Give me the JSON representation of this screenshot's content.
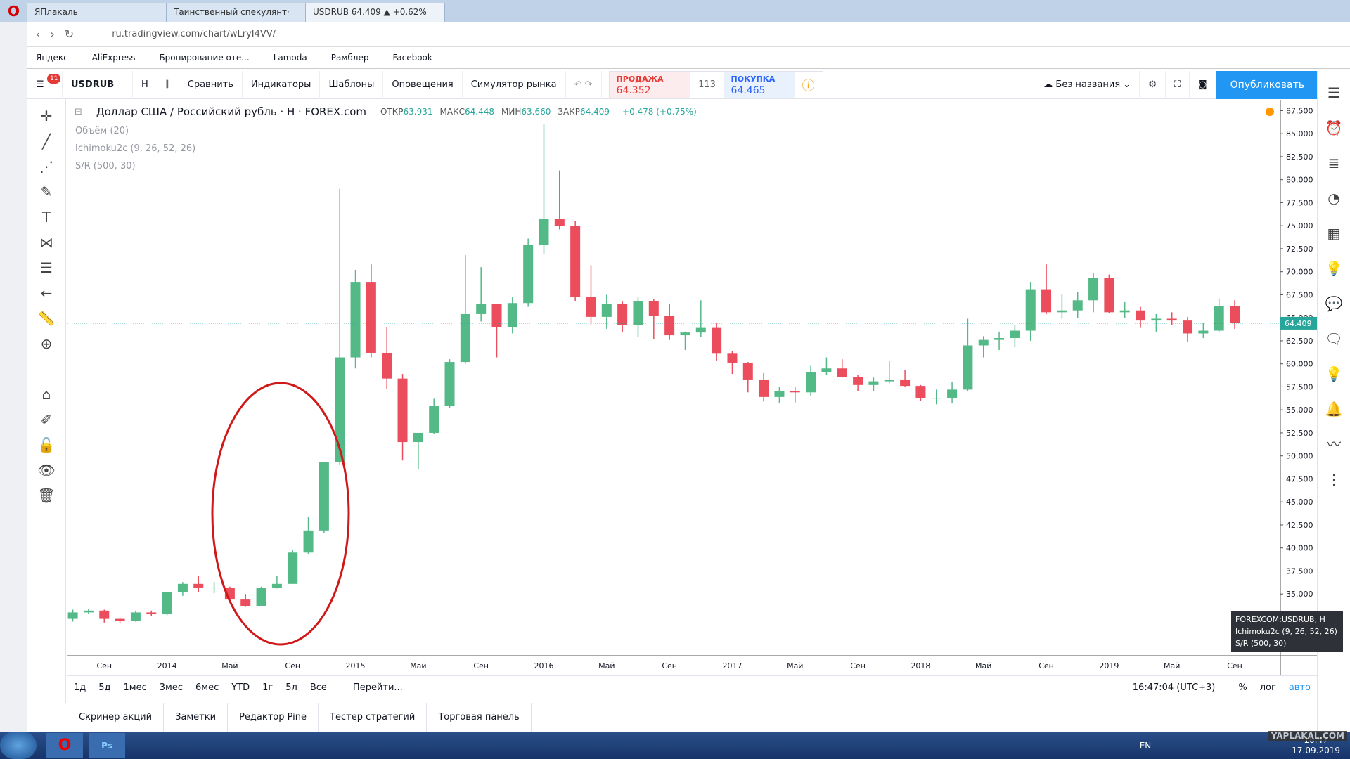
{
  "browser": {
    "tabs": [
      "ЯПлакаль",
      "Таинственный спекулянт·",
      "USDRUB 64.409 ▲ +0.62%"
    ],
    "url": "ru.tradingview.com/chart/wLryI4VV/",
    "bookmarks": [
      "Яндекс",
      "AliExpress",
      "Бронирование оте...",
      "Lamoda",
      "Рамблер",
      "Facebook"
    ]
  },
  "toolbar": {
    "badge": "11",
    "symbol": "USDRUB",
    "interval": "Н",
    "buttons": [
      "Сравнить",
      "Индикаторы",
      "Шаблоны",
      "Оповещения",
      "Симулятор рынка"
    ],
    "sell_label": "ПРОДАЖА",
    "sell": "64.352",
    "spread": "113",
    "buy_label": "ПОКУПКА",
    "buy": "64.465",
    "layout": "Без названия",
    "publish": "Опубликовать"
  },
  "legend": {
    "title": "Доллар США / Российский рубль · Н · FOREX.com",
    "ohlc": [
      "ОТКР",
      "63.931",
      "МАКС",
      "64.448",
      "МИН",
      "63.660",
      "ЗАКР",
      "64.409"
    ],
    "change": "+0.478 (+0.75%)",
    "indicators": [
      "Объём (20)",
      "Ichimoku2c (9, 26, 52, 26)",
      "S/R (500, 30)"
    ]
  },
  "chart_data": {
    "type": "candlestick",
    "up_color": "#53b987",
    "down_color": "#eb4d5c",
    "grid": true,
    "last_price": 64.409,
    "last_color": "#26a69a",
    "categories": [
      null,
      null,
      "Сен",
      null,
      null,
      null,
      "2014",
      null,
      null,
      null,
      "Май",
      null,
      null,
      null,
      "Сен",
      null,
      null,
      null,
      "2015",
      null,
      null,
      null,
      "Май",
      null,
      null,
      null,
      "Сен",
      null,
      null,
      null,
      "2016",
      null,
      null,
      null,
      "Май",
      null,
      null,
      null,
      "Сен",
      null,
      null,
      null,
      "2017",
      null,
      null,
      null,
      "Май",
      null,
      null,
      null,
      "Сен",
      null,
      null,
      null,
      "2018",
      null,
      null,
      null,
      "Май",
      null,
      null,
      null,
      "Сен",
      null,
      null,
      null,
      "2019",
      null,
      null,
      null,
      "Май",
      null,
      null,
      null,
      "Сен"
    ],
    "open": [
      32.3,
      33.0,
      33.2,
      32.3,
      32.1,
      33.0,
      32.8,
      35.2,
      36.1,
      35.7,
      35.7,
      34.4,
      33.7,
      35.7,
      36.1,
      39.5,
      41.9,
      49.3,
      60.7,
      68.9,
      61.2,
      58.4,
      51.5,
      52.5,
      55.4,
      60.2,
      65.4,
      66.5,
      64.0,
      66.6,
      72.9,
      75.7,
      75.0,
      67.3,
      65.1,
      66.5,
      64.2,
      66.8,
      65.2,
      63.1,
      63.4,
      63.9,
      61.1,
      60.1,
      58.3,
      56.4,
      57.0,
      56.9,
      59.1,
      59.5,
      58.6,
      57.7,
      58.1,
      58.3,
      57.6,
      56.3,
      56.3,
      57.2,
      62.0,
      62.6,
      62.8,
      63.6,
      68.1,
      65.6,
      65.8,
      66.9,
      69.3,
      65.6,
      65.8,
      64.7,
      64.9,
      64.7,
      63.3,
      63.6,
      66.3
    ],
    "high": [
      33.3,
      33.4,
      33.3,
      32.4,
      33.2,
      33.2,
      35.2,
      36.3,
      37.0,
      36.3,
      35.8,
      35.0,
      35.8,
      37.0,
      39.8,
      43.4,
      49.3,
      79.0,
      70.2,
      70.8,
      64.0,
      58.9,
      52.5,
      56.2,
      60.5,
      71.8,
      70.5,
      66.5,
      67.3,
      73.6,
      86.0,
      81.0,
      75.5,
      70.7,
      67.5,
      66.8,
      67.2,
      67.0,
      66.5,
      63.5,
      66.9,
      64.4,
      61.4,
      60.2,
      59.0,
      57.5,
      57.5,
      59.8,
      60.7,
      60.5,
      58.8,
      58.5,
      60.3,
      59.3,
      57.7,
      57.2,
      58.0,
      64.9,
      63.0,
      63.5,
      64.2,
      68.9,
      70.8,
      67.6,
      67.8,
      69.9,
      69.7,
      66.7,
      66.2,
      65.4,
      65.6,
      65.1,
      64.4,
      67.1,
      66.9
    ],
    "low": [
      32.0,
      32.8,
      31.9,
      31.8,
      32.0,
      32.6,
      32.7,
      34.8,
      35.2,
      35.1,
      34.2,
      33.6,
      33.7,
      35.6,
      36.1,
      39.3,
      41.6,
      49.0,
      59.5,
      60.7,
      57.3,
      49.5,
      48.6,
      52.4,
      55.2,
      60.0,
      64.6,
      60.7,
      63.3,
      66.2,
      71.9,
      74.6,
      66.8,
      64.3,
      63.8,
      63.4,
      62.9,
      62.7,
      62.6,
      61.5,
      62.9,
      60.3,
      58.9,
      56.9,
      55.9,
      55.7,
      55.8,
      56.5,
      58.8,
      58.5,
      57.0,
      57.0,
      57.9,
      57.5,
      56.0,
      55.6,
      55.7,
      57.0,
      60.7,
      61.5,
      61.8,
      62.5,
      65.4,
      64.9,
      65.0,
      65.6,
      65.5,
      65.0,
      63.9,
      63.5,
      64.2,
      62.4,
      62.8,
      63.5,
      63.8
    ],
    "close": [
      33.0,
      33.2,
      32.3,
      32.1,
      33.0,
      32.8,
      35.2,
      36.1,
      35.7,
      35.7,
      34.4,
      33.7,
      35.7,
      36.1,
      39.5,
      41.9,
      49.3,
      60.7,
      68.9,
      61.2,
      58.4,
      51.5,
      52.5,
      55.4,
      60.2,
      65.4,
      66.5,
      64.0,
      66.6,
      72.9,
      75.7,
      75.0,
      67.3,
      65.1,
      66.5,
      64.2,
      66.8,
      65.2,
      63.1,
      63.4,
      63.9,
      61.1,
      60.1,
      58.3,
      56.4,
      57.0,
      56.9,
      59.1,
      59.5,
      58.6,
      57.7,
      58.1,
      58.3,
      57.6,
      56.3,
      56.3,
      57.2,
      62.0,
      62.6,
      62.8,
      63.6,
      68.1,
      65.6,
      65.8,
      66.9,
      69.3,
      65.6,
      65.8,
      64.7,
      64.9,
      64.7,
      63.3,
      63.6,
      66.3,
      64.4
    ],
    "ylim": [
      28.3,
      88.6
    ],
    "yticks": [
      {
        "value": 35,
        "label": "35.000"
      },
      {
        "value": 37.5,
        "label": "37.500"
      },
      {
        "value": 40,
        "label": "40.000"
      },
      {
        "value": 42.5,
        "label": "42.500"
      },
      {
        "value": 45,
        "label": "45.000"
      },
      {
        "value": 47.5,
        "label": "47.500"
      },
      {
        "value": 50,
        "label": "50.000"
      },
      {
        "value": 52.5,
        "label": "52.500"
      },
      {
        "value": 55,
        "label": "55.000"
      },
      {
        "value": 57.5,
        "label": "57.500"
      },
      {
        "value": 60,
        "label": "60.000"
      },
      {
        "value": 62.5,
        "label": "62.500"
      },
      {
        "value": 65,
        "label": "65.000"
      },
      {
        "value": 67.5,
        "label": "67.500"
      },
      {
        "value": 70,
        "label": "70.000"
      },
      {
        "value": 72.5,
        "label": "72.500"
      },
      {
        "value": 75,
        "label": "75.000"
      },
      {
        "value": 77.5,
        "label": "77.500"
      },
      {
        "value": 80,
        "label": "80.000"
      },
      {
        "value": 82.5,
        "label": "82.500"
      },
      {
        "value": 85,
        "label": "85.000"
      },
      {
        "value": 87.5,
        "label": "87.500"
      }
    ]
  },
  "tooltip": [
    "FOREXCOM:USDRUB, H",
    "Ichimoku2c (9, 26, 52, 26)",
    "S/R (500, 30)"
  ],
  "bottom": {
    "ranges": [
      "1д",
      "5д",
      "1мес",
      "3мес",
      "6мес",
      "YTD",
      "1г",
      "5л",
      "Все"
    ],
    "goto": "Перейти...",
    "time": "16:47:04 (UTC+3)",
    "scale": [
      "%",
      "лог",
      "авто"
    ],
    "tabs": [
      "Скринер акций",
      "Заметки",
      "Редактор Pine",
      "Тестер стратегий",
      "Торговая панель"
    ]
  },
  "taskbar": {
    "lang": "EN",
    "time": "16:47",
    "date": "17.09.2019",
    "watermark": "YAPLAKAL.COM"
  }
}
